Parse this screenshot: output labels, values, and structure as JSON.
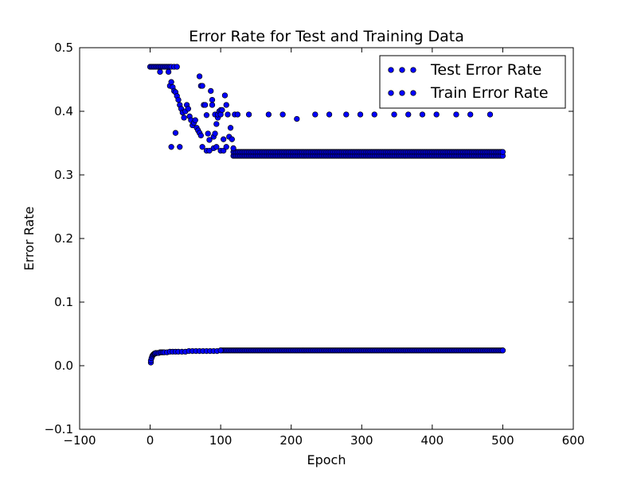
{
  "chart_data": {
    "type": "scatter",
    "title": "Error Rate for Test and Training Data",
    "xlabel": "Epoch",
    "ylabel": "Error Rate",
    "xlim": [
      -100,
      600
    ],
    "ylim": [
      -0.1,
      0.5
    ],
    "x_ticks": [
      -100,
      0,
      100,
      200,
      300,
      400,
      500,
      600
    ],
    "y_ticks": [
      -0.1,
      0.0,
      0.1,
      0.2,
      0.3,
      0.4,
      0.5
    ],
    "x_tick_labels": [
      "−100",
      "0",
      "100",
      "200",
      "300",
      "400",
      "500",
      "600"
    ],
    "y_tick_labels": [
      "−0.1",
      "0.0",
      "0.1",
      "0.2",
      "0.3",
      "0.4",
      "0.5"
    ],
    "grid": false,
    "legend_position": "top-right",
    "marker_color": "#0000ff",
    "marker_edge_color": "#000000",
    "series": [
      {
        "name": "Test Error Rate",
        "points": [
          [
            0,
            0.47
          ],
          [
            2,
            0.47
          ],
          [
            4,
            0.47
          ],
          [
            6,
            0.47
          ],
          [
            8,
            0.47
          ],
          [
            10,
            0.47
          ],
          [
            12,
            0.47
          ],
          [
            14,
            0.47
          ],
          [
            16,
            0.47
          ],
          [
            18,
            0.47
          ],
          [
            20,
            0.47
          ],
          [
            22,
            0.47
          ],
          [
            24,
            0.47
          ],
          [
            26,
            0.47
          ],
          [
            28,
            0.47
          ],
          [
            30,
            0.47
          ],
          [
            34,
            0.47
          ],
          [
            38,
            0.47
          ],
          [
            14,
            0.462
          ],
          [
            26,
            0.462
          ],
          [
            28,
            0.44
          ],
          [
            30,
            0.446
          ],
          [
            32,
            0.438
          ],
          [
            34,
            0.432
          ],
          [
            36,
            0.43
          ],
          [
            38,
            0.424
          ],
          [
            40,
            0.418
          ],
          [
            42,
            0.41
          ],
          [
            44,
            0.404
          ],
          [
            46,
            0.398
          ],
          [
            48,
            0.39
          ],
          [
            50,
            0.4
          ],
          [
            52,
            0.41
          ],
          [
            54,
            0.404
          ],
          [
            56,
            0.392
          ],
          [
            58,
            0.386
          ],
          [
            60,
            0.378
          ],
          [
            62,
            0.382
          ],
          [
            64,
            0.386
          ],
          [
            66,
            0.374
          ],
          [
            68,
            0.37
          ],
          [
            70,
            0.366
          ],
          [
            72,
            0.362
          ],
          [
            30,
            0.344
          ],
          [
            36,
            0.366
          ],
          [
            42,
            0.344
          ],
          [
            70,
            0.455
          ],
          [
            72,
            0.44
          ],
          [
            74,
            0.44
          ],
          [
            76,
            0.41
          ],
          [
            78,
            0.41
          ],
          [
            80,
            0.394
          ],
          [
            82,
            0.365
          ],
          [
            84,
            0.355
          ],
          [
            86,
            0.432
          ],
          [
            88,
            0.41
          ],
          [
            88,
            0.418
          ],
          [
            90,
            0.342
          ],
          [
            90,
            0.36
          ],
          [
            92,
            0.395
          ],
          [
            92,
            0.365
          ],
          [
            94,
            0.38
          ],
          [
            96,
            0.39
          ],
          [
            96,
            0.395
          ],
          [
            98,
            0.4
          ],
          [
            100,
            0.402
          ],
          [
            100,
            0.395
          ],
          [
            102,
            0.402
          ],
          [
            104,
            0.356
          ],
          [
            106,
            0.425
          ],
          [
            108,
            0.41
          ],
          [
            110,
            0.395
          ],
          [
            112,
            0.36
          ],
          [
            114,
            0.374
          ],
          [
            116,
            0.356
          ],
          [
            118,
            0.342
          ],
          [
            120,
            0.395
          ],
          [
            124,
            0.395
          ],
          [
            74,
            0.344
          ],
          [
            80,
            0.338
          ],
          [
            84,
            0.338
          ],
          [
            94,
            0.344
          ],
          [
            100,
            0.338
          ],
          [
            104,
            0.338
          ],
          [
            108,
            0.344
          ],
          [
            140,
            0.395
          ],
          [
            168,
            0.395
          ],
          [
            188,
            0.395
          ],
          [
            208,
            0.388
          ],
          [
            234,
            0.395
          ],
          [
            254,
            0.395
          ],
          [
            278,
            0.395
          ],
          [
            298,
            0.395
          ],
          [
            318,
            0.395
          ],
          [
            346,
            0.395
          ],
          [
            366,
            0.395
          ],
          [
            386,
            0.395
          ],
          [
            406,
            0.395
          ],
          [
            434,
            0.395
          ],
          [
            454,
            0.395
          ],
          [
            482,
            0.395
          ]
        ]
      },
      {
        "name": "Train Error Rate",
        "points": [
          [
            1,
            0.005
          ],
          [
            1,
            0.008
          ],
          [
            2,
            0.012
          ],
          [
            3,
            0.015
          ],
          [
            4,
            0.017
          ],
          [
            5,
            0.018
          ],
          [
            6,
            0.019
          ],
          [
            7,
            0.019
          ],
          [
            8,
            0.02
          ],
          [
            10,
            0.02
          ],
          [
            12,
            0.02
          ],
          [
            14,
            0.021
          ],
          [
            16,
            0.021
          ],
          [
            18,
            0.021
          ],
          [
            20,
            0.021
          ],
          [
            24,
            0.021
          ],
          [
            28,
            0.022
          ],
          [
            32,
            0.022
          ],
          [
            36,
            0.022
          ],
          [
            40,
            0.022
          ],
          [
            45,
            0.022
          ],
          [
            50,
            0.022
          ],
          [
            55,
            0.023
          ],
          [
            60,
            0.023
          ],
          [
            65,
            0.023
          ],
          [
            70,
            0.023
          ],
          [
            75,
            0.023
          ],
          [
            80,
            0.023
          ],
          [
            85,
            0.023
          ],
          [
            90,
            0.023
          ],
          [
            95,
            0.023
          ],
          [
            100,
            0.024
          ],
          [
            500,
            0.024
          ]
        ]
      }
    ],
    "series_ranges": [
      {
        "series": "Test Error Rate",
        "x": [
          118,
          500
        ],
        "step": 2,
        "values": [
          0.33,
          0.336
        ]
      },
      {
        "series": "Train Error Rate",
        "x": [
          100,
          500
        ],
        "step": 2,
        "values": [
          0.024
        ]
      }
    ]
  }
}
